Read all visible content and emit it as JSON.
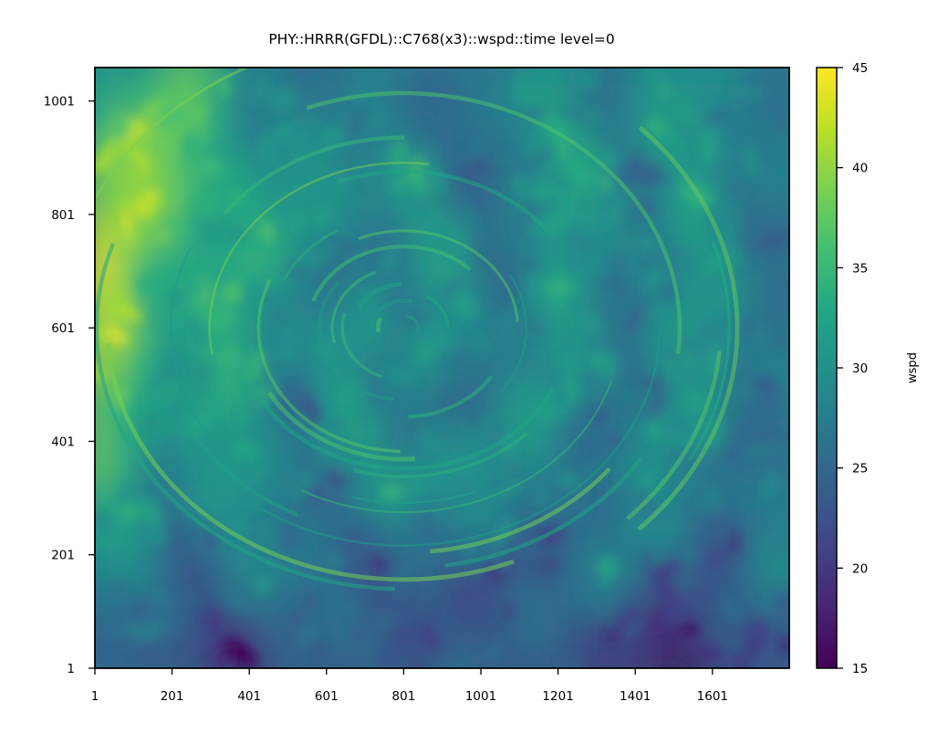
{
  "chart_data": {
    "type": "heatmap",
    "title": "PHY::HRRR(GFDL)::C768(x3)::wspd::time level=0",
    "xlabel": "",
    "ylabel": "",
    "xlim": [
      1,
      1800
    ],
    "ylim": [
      1,
      1060
    ],
    "x_ticks": [
      1,
      201,
      401,
      601,
      801,
      1001,
      1201,
      1401,
      1601
    ],
    "y_ticks": [
      1,
      201,
      401,
      601,
      801,
      1001
    ],
    "colormap": "viridis",
    "colorbar": {
      "label": "wspd",
      "range": [
        15,
        45
      ],
      "ticks": [
        15,
        20,
        25,
        30,
        35,
        40,
        45
      ]
    },
    "field_description": "Wind speed field of a cyclone: high values (40-45) along the upper-left, a swirling vortex centred near x≈801, y≈601, and low values (15-20) along the bottom edge, lowest near x≈1500."
  },
  "colors": {
    "viridis": [
      "#440154",
      "#482475",
      "#414487",
      "#355f8d",
      "#2a788e",
      "#21918c",
      "#22a884",
      "#44bf70",
      "#7ad151",
      "#bddf26",
      "#fde725"
    ]
  }
}
